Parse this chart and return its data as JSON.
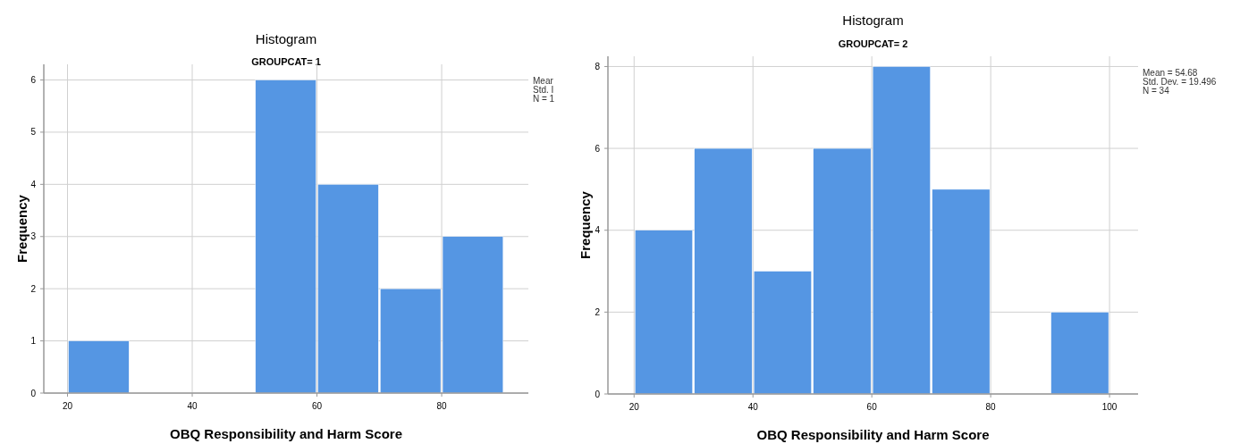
{
  "chart_data": [
    {
      "type": "histogram",
      "title": "Histogram",
      "subtitle": "GROUPCAT= 1",
      "xlabel": "OBQ Responsibility and Harm Score",
      "ylabel": "Frequency",
      "bins": [
        20,
        30,
        40,
        50,
        60,
        70,
        80,
        90
      ],
      "values": [
        1,
        0,
        0,
        6,
        4,
        2,
        3
      ],
      "color": "#5596e3",
      "xlim": [
        16.2,
        93.9
      ],
      "xticks": [
        20,
        40,
        60,
        80
      ],
      "ylim": [
        0,
        6.3
      ],
      "yticks": [
        0,
        1,
        2,
        3,
        4,
        5,
        6
      ],
      "grid": true,
      "annotations": [
        "Mear",
        "Std. I",
        "N = 1"
      ]
    },
    {
      "type": "histogram",
      "title": "Histogram",
      "subtitle": "GROUPCAT= 2",
      "xlabel": "OBQ Responsibility and Harm Score",
      "ylabel": "Frequency",
      "bins": [
        20,
        30,
        40,
        50,
        60,
        70,
        80,
        90,
        100
      ],
      "values": [
        4,
        6,
        3,
        6,
        8,
        5,
        0,
        2
      ],
      "color": "#5596e3",
      "xlim": [
        15.6,
        104.8
      ],
      "xticks": [
        20,
        40,
        60,
        80,
        100
      ],
      "ylim": [
        0,
        8.25
      ],
      "yticks": [
        0,
        2,
        4,
        6,
        8
      ],
      "grid": true,
      "annotations": [
        "Mean = 54.68",
        "Std. Dev. = 19.496",
        "N = 34"
      ]
    }
  ]
}
